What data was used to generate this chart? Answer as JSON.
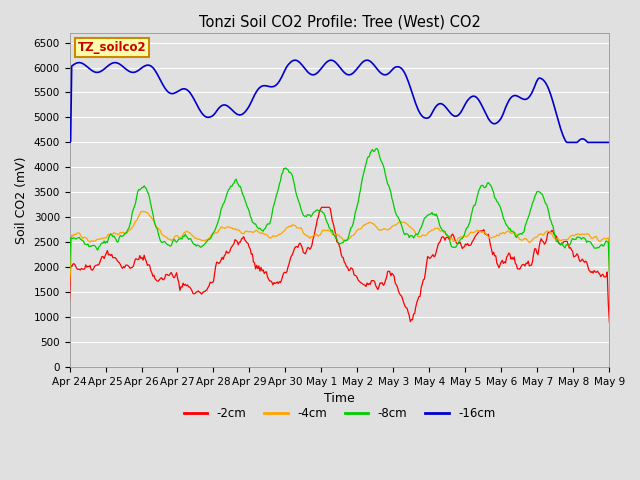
{
  "title": "Tonzi Soil CO2 Profile: Tree (West) CO2",
  "xlabel": "Time",
  "ylabel": "Soil CO2 (mV)",
  "annotation": "TZ_soilco2",
  "ylim": [
    0,
    6700
  ],
  "yticks": [
    0,
    500,
    1000,
    1500,
    2000,
    2500,
    3000,
    3500,
    4000,
    4500,
    5000,
    5500,
    6000,
    6500
  ],
  "xtick_labels": [
    "Apr 24",
    "Apr 25",
    "Apr 26",
    "Apr 27",
    "Apr 28",
    "Apr 29",
    "Apr 30",
    "May 1",
    "May 2",
    "May 3",
    "May 4",
    "May 5",
    "May 6",
    "May 7",
    "May 8",
    "May 9"
  ],
  "colors": {
    "-2cm": "#ff0000",
    "-4cm": "#ffa500",
    "-8cm": "#00cc00",
    "-16cm": "#0000cc"
  },
  "legend_entries": [
    "-2cm",
    "-4cm",
    "-8cm",
    "-16cm"
  ],
  "plot_bg": "#e0e0e0",
  "annotation_box_color": "#ffffaa",
  "annotation_text_color": "#cc0000",
  "annotation_edge_color": "#cc8800",
  "grid_color": "#ffffff",
  "n_points": 500
}
